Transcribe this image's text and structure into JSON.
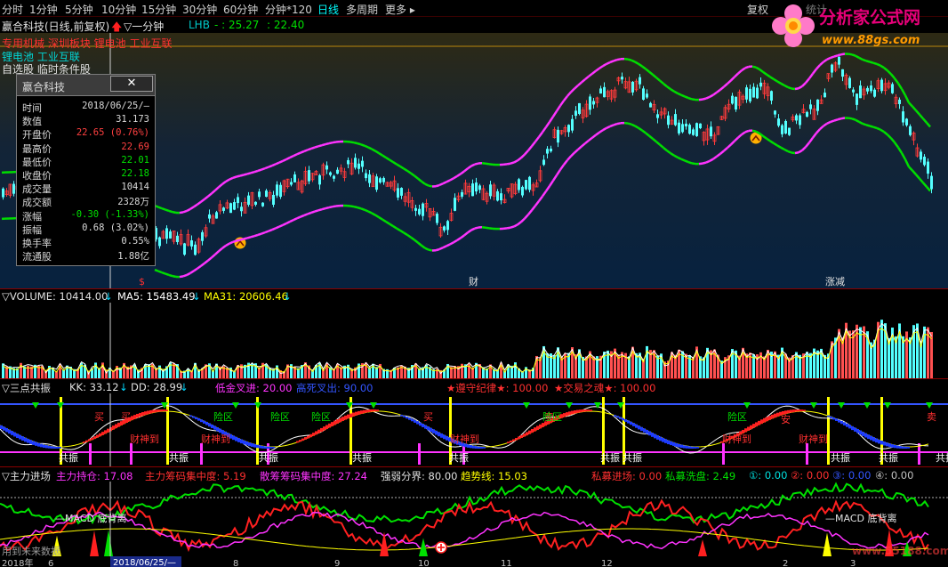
{
  "toolbar": {
    "timeframes": [
      "分时",
      "1分钟",
      "5分钟",
      "10分钟",
      "15分钟",
      "30分钟",
      "60分钟",
      "分钟*120",
      "日线",
      "多周期",
      "更多 ▸"
    ],
    "restore_label": "复权",
    "stats_label": "统计"
  },
  "logo": {
    "title": "分析家公式网",
    "url": "www.88gs.com"
  },
  "main_pane": {
    "title": "赢合科技(日线,前复权)",
    "period_label": "▽一分钟",
    "indicator_name": "LHB",
    "indicator_values": [
      "- : 25.27",
      ": 22.40"
    ],
    "sector_line1": "专用机械 深圳板块 锂电池 工业互联",
    "sector_line2": "锂电池 工业互联",
    "pick_label": "自选股 临时条件股",
    "markers": [
      "$",
      "财",
      "涨减"
    ],
    "colors": {
      "up": "#ff3b3b",
      "down": "#54ffff",
      "band_high": "#00dd00",
      "band_low": "#ff33ff"
    }
  },
  "info_window": {
    "title": "赢合科技",
    "close_label": "✕",
    "rows": [
      {
        "label": "时间",
        "value": "2018/06/25/—",
        "color": "#d8d8d8"
      },
      {
        "label": "数值",
        "value": "31.173",
        "color": "#d8d8d8"
      },
      {
        "label": "开盘价",
        "value": "22.65 (0.76%)",
        "color": "#ff4040"
      },
      {
        "label": "最高价",
        "value": "22.69",
        "color": "#ff4040"
      },
      {
        "label": "最低价",
        "value": "22.01",
        "color": "#00e000"
      },
      {
        "label": "收盘价",
        "value": "22.18",
        "color": "#00e000"
      },
      {
        "label": "成交量",
        "value": "10414",
        "color": "#d8d8d8"
      },
      {
        "label": "成交额",
        "value": "2328万",
        "color": "#d8d8d8"
      },
      {
        "label": "涨幅",
        "value": "-0.30 (-1.33%)",
        "color": "#00e000"
      },
      {
        "label": "振幅",
        "value": "0.68 (3.02%)",
        "color": "#d8d8d8"
      },
      {
        "label": "换手率",
        "value": "0.55%",
        "color": "#d8d8d8"
      },
      {
        "label": "流通股",
        "value": "1.88亿",
        "color": "#d8d8d8"
      }
    ]
  },
  "volume_pane": {
    "label": "▽VOLUME: 10414.00",
    "ma5": "MA5: 15483.49",
    "ma31": "MA31: 20606.46"
  },
  "resonance_pane": {
    "label": "▽三点共振",
    "kk": "KK: 33.12",
    "dd": "DD: 28.99",
    "entries": [
      {
        "text": "低金叉进: 20.00",
        "color": "#ff33ff"
      },
      {
        "text": "高死叉出: 90.00",
        "color": "#3355ff"
      },
      {
        "text": "★遵守纪律★: 100.00",
        "color": "#ff3030"
      },
      {
        "text": "★交易之魂★: 100.00",
        "color": "#ff3030"
      }
    ],
    "tags": [
      "买",
      "买",
      "买",
      "卖",
      "卖",
      "共振",
      "共振",
      "共振",
      "共振",
      "共振",
      "共振",
      "共振",
      "共振",
      "共振",
      "共振",
      "财神到",
      "财神到",
      "财神到",
      "财神到",
      "财神到",
      "安",
      "险区",
      "险区",
      "险区",
      "险区",
      "险区"
    ]
  },
  "mainforce_pane": {
    "label": "▽主力进场",
    "entries": [
      {
        "text": "主力持仓: 17.08",
        "color": "#ff33ff"
      },
      {
        "text": "主力筹码集中度: 5.19",
        "color": "#ff3030"
      },
      {
        "text": "散筹筹码集中度: 27.24",
        "color": "#ff33ff"
      },
      {
        "text": "强弱分界: 80.00",
        "color": "#e0e0e0"
      },
      {
        "text": "趋势线: 15.03",
        "color": "#ffff00"
      },
      {
        "text": "私募进场: 0.00",
        "color": "#ff3030"
      },
      {
        "text": "私募洗盘: 2.49",
        "color": "#00e000"
      },
      {
        "text": "①: 0.00",
        "color": "#00e0e0"
      },
      {
        "text": "②: 0.00",
        "color": "#ff3030"
      },
      {
        "text": "③: 0.00",
        "color": "#3355ff"
      },
      {
        "text": "④: 0.00",
        "color": "#c0c0c0"
      }
    ],
    "notes": [
      "—MACD 底背离",
      "—MACD 底背离"
    ],
    "watermark": "www.55188.com",
    "bottom_hint": "用到未来数据"
  },
  "date_axis": {
    "items": [
      "2018年",
      "6",
      "2018/06/25/—",
      "8",
      "9",
      "10",
      "11",
      "12",
      "2",
      "3"
    ]
  }
}
